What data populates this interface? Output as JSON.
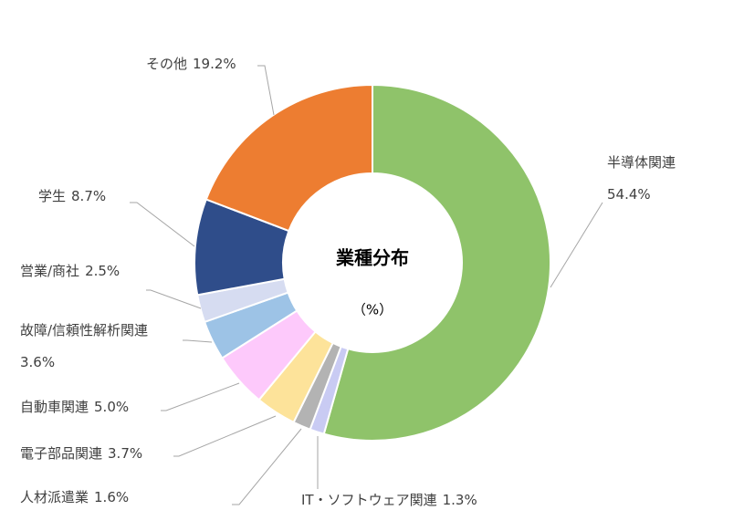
{
  "chart_data": {
    "type": "donut",
    "title": "業種分布",
    "subtitle": "（%）",
    "categories": [
      "半導体関連",
      "IT・ソフトウェア関連",
      "人材派遣業",
      "電子部品関連",
      "自動車関連",
      "故障/信頼性解析関連",
      "営業/商社",
      "学生",
      "その他"
    ],
    "values": [
      54.4,
      1.3,
      1.6,
      3.7,
      5.0,
      3.6,
      2.5,
      8.7,
      19.2
    ],
    "value_labels": [
      "54.4%",
      "1.3%",
      "1.6%",
      "3.7%",
      "5.0%",
      "3.6%",
      "2.5%",
      "8.7%",
      "19.2%"
    ],
    "colors": [
      "#8fc36a",
      "#c9cbf3",
      "#b3b3b3",
      "#fde39a",
      "#fdc9fb",
      "#9dc3e6",
      "#d6dcf1",
      "#2f4d8a",
      "#ed7d31"
    ]
  }
}
